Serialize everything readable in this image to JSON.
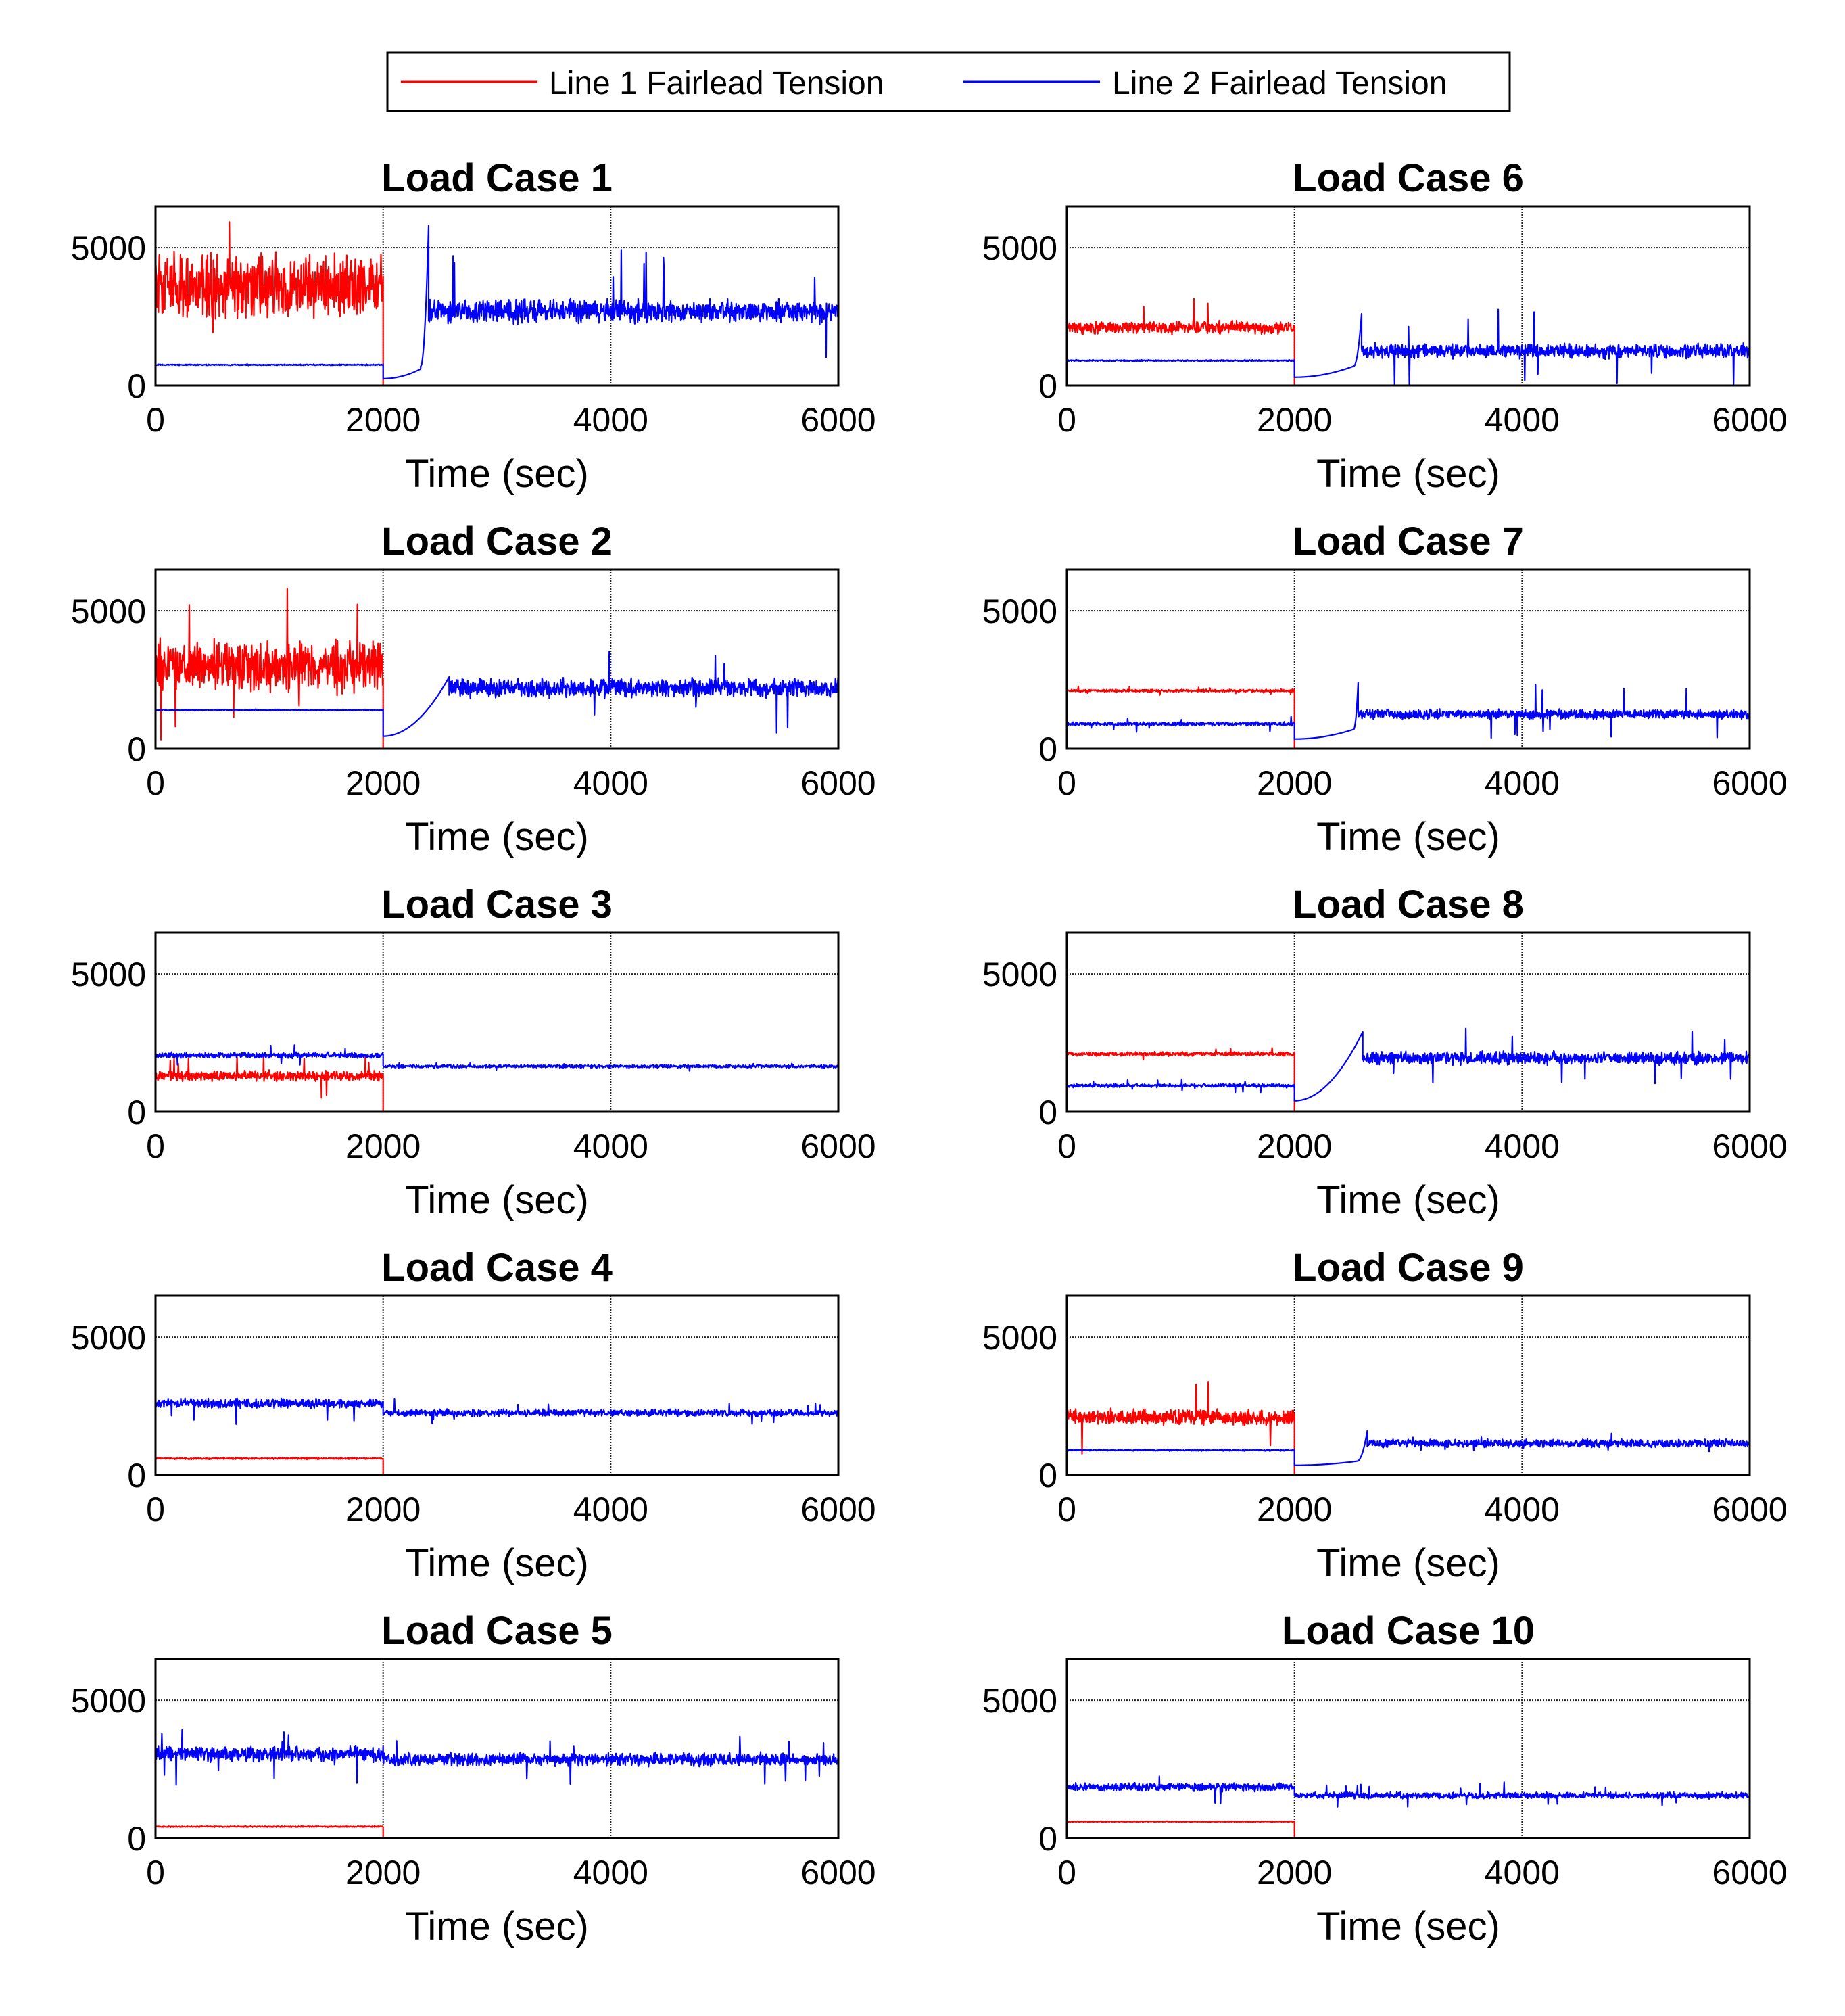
{
  "legend": {
    "entries": [
      {
        "label": "Line 1 Fairlead Tension",
        "color": "#ff0000"
      },
      {
        "label": "Line 2 Fairlead Tension",
        "color": "#0000ff"
      }
    ]
  },
  "chart_data": [
    {
      "type": "line",
      "title": "Load Case 1",
      "xlabel": "Time (sec)",
      "ylabel": "",
      "xlim": [
        0,
        6000
      ],
      "ylim": [
        0,
        6500
      ],
      "xticks": [
        "0",
        "2000",
        "4000",
        "6000"
      ],
      "yticks": [
        "0",
        "5000"
      ],
      "grid": true,
      "series": [
        {
          "name": "Line 1 Fairlead Tension",
          "color": "#ff0000",
          "segments": [
            {
              "t0": 0,
              "t1": 2000,
              "mean": 3600,
              "amp": 1400,
              "spike": 2700
            },
            {
              "t0": 2000,
              "t1": 6000,
              "mean": 0,
              "amp": 0
            }
          ]
        },
        {
          "name": "Line 2 Fairlead Tension",
          "color": "#0000ff",
          "segments": [
            {
              "t0": 0,
              "t1": 2000,
              "mean": 750,
              "amp": 25
            },
            {
              "t0": 2000,
              "t1": 2330,
              "mean": 250,
              "end": 600,
              "amp": 0
            },
            {
              "t0": 2330,
              "t1": 2400,
              "mean": 700,
              "end": 5800,
              "amp": 0
            },
            {
              "t0": 2400,
              "t1": 6000,
              "mean": 2700,
              "amp": 500,
              "spike": 2100
            }
          ]
        }
      ]
    },
    {
      "type": "line",
      "title": "Load Case 2",
      "xlabel": "Time (sec)",
      "ylabel": "",
      "xlim": [
        0,
        6000
      ],
      "ylim": [
        0,
        6500
      ],
      "xticks": [
        "0",
        "2000",
        "4000",
        "6000"
      ],
      "yticks": [
        "0",
        "5000"
      ],
      "grid": true,
      "series": [
        {
          "name": "Line 1 Fairlead Tension",
          "color": "#ff0000",
          "segments": [
            {
              "t0": 0,
              "t1": 2000,
              "mean": 3000,
              "amp": 1100,
              "spike": 2400
            },
            {
              "t0": 2000,
              "t1": 6000,
              "mean": 0,
              "amp": 0
            }
          ]
        },
        {
          "name": "Line 2 Fairlead Tension",
          "color": "#0000ff",
          "segments": [
            {
              "t0": 0,
              "t1": 2000,
              "mean": 1400,
              "amp": 30
            },
            {
              "t0": 2000,
              "t1": 2580,
              "mean": 450,
              "end": 2600,
              "amp": 0
            },
            {
              "t0": 2580,
              "t1": 6000,
              "mean": 2200,
              "amp": 400,
              "spike": 1500
            }
          ]
        }
      ]
    },
    {
      "type": "line",
      "title": "Load Case 3",
      "xlabel": "Time (sec)",
      "ylabel": "",
      "xlim": [
        0,
        6000
      ],
      "ylim": [
        0,
        6500
      ],
      "xticks": [
        "0",
        "2000",
        "4000",
        "6000"
      ],
      "yticks": [
        "0",
        "5000"
      ],
      "grid": true,
      "series": [
        {
          "name": "Line 1 Fairlead Tension",
          "color": "#ff0000",
          "segments": [
            {
              "t0": 0,
              "t1": 2000,
              "mean": 1300,
              "amp": 220,
              "spike": 700
            },
            {
              "t0": 2000,
              "t1": 6000,
              "mean": 0,
              "amp": 0
            }
          ]
        },
        {
          "name": "Line 2 Fairlead Tension",
          "color": "#0000ff",
          "segments": [
            {
              "t0": 0,
              "t1": 2000,
              "mean": 2050,
              "amp": 120,
              "spike": 400
            },
            {
              "t0": 2000,
              "t1": 6000,
              "mean": 1650,
              "amp": 70,
              "spike": 150
            }
          ]
        }
      ]
    },
    {
      "type": "line",
      "title": "Load Case 4",
      "xlabel": "Time (sec)",
      "ylabel": "",
      "xlim": [
        0,
        6000
      ],
      "ylim": [
        0,
        6500
      ],
      "xticks": [
        "0",
        "2000",
        "4000",
        "6000"
      ],
      "yticks": [
        "0",
        "5000"
      ],
      "grid": true,
      "series": [
        {
          "name": "Line 1 Fairlead Tension",
          "color": "#ff0000",
          "segments": [
            {
              "t0": 0,
              "t1": 2000,
              "mean": 600,
              "amp": 40
            },
            {
              "t0": 2000,
              "t1": 6000,
              "mean": 0,
              "amp": 0
            }
          ]
        },
        {
          "name": "Line 2 Fairlead Tension",
          "color": "#0000ff",
          "segments": [
            {
              "t0": 0,
              "t1": 2000,
              "mean": 2600,
              "amp": 200,
              "spike": 700
            },
            {
              "t0": 2000,
              "t1": 6000,
              "mean": 2250,
              "amp": 150,
              "spike": 400
            }
          ]
        }
      ]
    },
    {
      "type": "line",
      "title": "Load Case 5",
      "xlabel": "Time (sec)",
      "ylabel": "",
      "xlim": [
        0,
        6000
      ],
      "ylim": [
        0,
        6500
      ],
      "xticks": [
        "0",
        "2000",
        "4000",
        "6000"
      ],
      "yticks": [
        "0",
        "5000"
      ],
      "grid": true,
      "series": [
        {
          "name": "Line 1 Fairlead Tension",
          "color": "#ff0000",
          "segments": [
            {
              "t0": 0,
              "t1": 2000,
              "mean": 420,
              "amp": 25
            },
            {
              "t0": 2000,
              "t1": 6000,
              "mean": 0,
              "amp": 0
            }
          ]
        },
        {
          "name": "Line 2 Fairlead Tension",
          "color": "#0000ff",
          "segments": [
            {
              "t0": 0,
              "t1": 2000,
              "mean": 3050,
              "amp": 320,
              "spike": 1000
            },
            {
              "t0": 2000,
              "t1": 6000,
              "mean": 2850,
              "amp": 280,
              "spike": 800
            }
          ]
        }
      ]
    },
    {
      "type": "line",
      "title": "Load Case 6",
      "xlabel": "Time (sec)",
      "ylabel": "",
      "xlim": [
        0,
        6000
      ],
      "ylim": [
        0,
        6500
      ],
      "xticks": [
        "0",
        "2000",
        "4000",
        "6000"
      ],
      "yticks": [
        "0",
        "5000"
      ],
      "grid": true,
      "series": [
        {
          "name": "Line 1 Fairlead Tension",
          "color": "#ff0000",
          "segments": [
            {
              "t0": 0,
              "t1": 2000,
              "mean": 2100,
              "amp": 280,
              "spike": 1100
            },
            {
              "t0": 2000,
              "t1": 6000,
              "mean": 0,
              "amp": 0
            }
          ]
        },
        {
          "name": "Line 2 Fairlead Tension",
          "color": "#0000ff",
          "segments": [
            {
              "t0": 0,
              "t1": 2000,
              "mean": 900,
              "amp": 35
            },
            {
              "t0": 2000,
              "t1": 2520,
              "mean": 300,
              "end": 700,
              "amp": 0
            },
            {
              "t0": 2520,
              "t1": 2590,
              "mean": 700,
              "end": 2600,
              "amp": 0
            },
            {
              "t0": 2590,
              "t1": 6000,
              "mean": 1250,
              "amp": 300,
              "spike": 1500
            }
          ]
        }
      ]
    },
    {
      "type": "line",
      "title": "Load Case 7",
      "xlabel": "Time (sec)",
      "ylabel": "",
      "xlim": [
        0,
        6000
      ],
      "ylim": [
        0,
        6500
      ],
      "xticks": [
        "0",
        "2000",
        "4000",
        "6000"
      ],
      "yticks": [
        "0",
        "5000"
      ],
      "grid": true,
      "series": [
        {
          "name": "Line 1 Fairlead Tension",
          "color": "#ff0000",
          "segments": [
            {
              "t0": 0,
              "t1": 2000,
              "mean": 2100,
              "amp": 60,
              "spike": 150
            },
            {
              "t0": 2000,
              "t1": 6000,
              "mean": 0,
              "amp": 0
            }
          ]
        },
        {
          "name": "Line 2 Fairlead Tension",
          "color": "#0000ff",
          "segments": [
            {
              "t0": 0,
              "t1": 2000,
              "mean": 900,
              "amp": 80,
              "spike": 250
            },
            {
              "t0": 2000,
              "t1": 2520,
              "mean": 350,
              "end": 700,
              "amp": 0
            },
            {
              "t0": 2520,
              "t1": 2560,
              "mean": 700,
              "end": 2400,
              "amp": 0
            },
            {
              "t0": 2560,
              "t1": 6000,
              "mean": 1250,
              "amp": 200,
              "spike": 1000
            }
          ]
        }
      ]
    },
    {
      "type": "line",
      "title": "Load Case 8",
      "xlabel": "Time (sec)",
      "ylabel": "",
      "xlim": [
        0,
        6000
      ],
      "ylim": [
        0,
        6500
      ],
      "xticks": [
        "0",
        "2000",
        "4000",
        "6000"
      ],
      "yticks": [
        "0",
        "5000"
      ],
      "grid": true,
      "series": [
        {
          "name": "Line 1 Fairlead Tension",
          "color": "#ff0000",
          "segments": [
            {
              "t0": 0,
              "t1": 2000,
              "mean": 2100,
              "amp": 90,
              "spike": 300
            },
            {
              "t0": 2000,
              "t1": 6000,
              "mean": 0,
              "amp": 0
            }
          ]
        },
        {
          "name": "Line 2 Fairlead Tension",
          "color": "#0000ff",
          "segments": [
            {
              "t0": 0,
              "t1": 2000,
              "mean": 950,
              "amp": 80,
              "spike": 250
            },
            {
              "t0": 2000,
              "t1": 2600,
              "mean": 400,
              "end": 2900,
              "amp": 0
            },
            {
              "t0": 2600,
              "t1": 6000,
              "mean": 1950,
              "amp": 280,
              "spike": 1000
            }
          ]
        }
      ]
    },
    {
      "type": "line",
      "title": "Load Case 9",
      "xlabel": "Time (sec)",
      "ylabel": "",
      "xlim": [
        0,
        6000
      ],
      "ylim": [
        0,
        6500
      ],
      "xticks": [
        "0",
        "2000",
        "4000",
        "6000"
      ],
      "yticks": [
        "0",
        "5000"
      ],
      "grid": true,
      "series": [
        {
          "name": "Line 1 Fairlead Tension",
          "color": "#ff0000",
          "segments": [
            {
              "t0": 0,
              "t1": 2000,
              "mean": 2100,
              "amp": 330,
              "spike": 1300
            },
            {
              "t0": 2000,
              "t1": 6000,
              "mean": 0,
              "amp": 0
            }
          ]
        },
        {
          "name": "Line 2 Fairlead Tension",
          "color": "#0000ff",
          "segments": [
            {
              "t0": 0,
              "t1": 2000,
              "mean": 900,
              "amp": 35
            },
            {
              "t0": 2000,
              "t1": 2550,
              "mean": 350,
              "end": 500,
              "amp": 0
            },
            {
              "t0": 2550,
              "t1": 2640,
              "mean": 500,
              "end": 1600,
              "amp": 0
            },
            {
              "t0": 2640,
              "t1": 6000,
              "mean": 1150,
              "amp": 170,
              "spike": 300
            }
          ]
        }
      ]
    },
    {
      "type": "line",
      "title": "Load Case 10",
      "xlabel": "Time (sec)",
      "ylabel": "",
      "xlim": [
        0,
        6000
      ],
      "ylim": [
        0,
        6500
      ],
      "xticks": [
        "0",
        "2000",
        "4000",
        "6000"
      ],
      "yticks": [
        "0",
        "5000"
      ],
      "grid": true,
      "series": [
        {
          "name": "Line 1 Fairlead Tension",
          "color": "#ff0000",
          "segments": [
            {
              "t0": 0,
              "t1": 2000,
              "mean": 600,
              "amp": 20
            },
            {
              "t0": 2000,
              "t1": 6000,
              "mean": 0,
              "amp": 0
            }
          ]
        },
        {
          "name": "Line 2 Fairlead Tension",
          "color": "#0000ff",
          "segments": [
            {
              "t0": 0,
              "t1": 2000,
              "mean": 1850,
              "amp": 170,
              "spike": 600
            },
            {
              "t0": 2000,
              "t1": 6000,
              "mean": 1550,
              "amp": 130,
              "spike": 450
            }
          ]
        }
      ]
    }
  ]
}
